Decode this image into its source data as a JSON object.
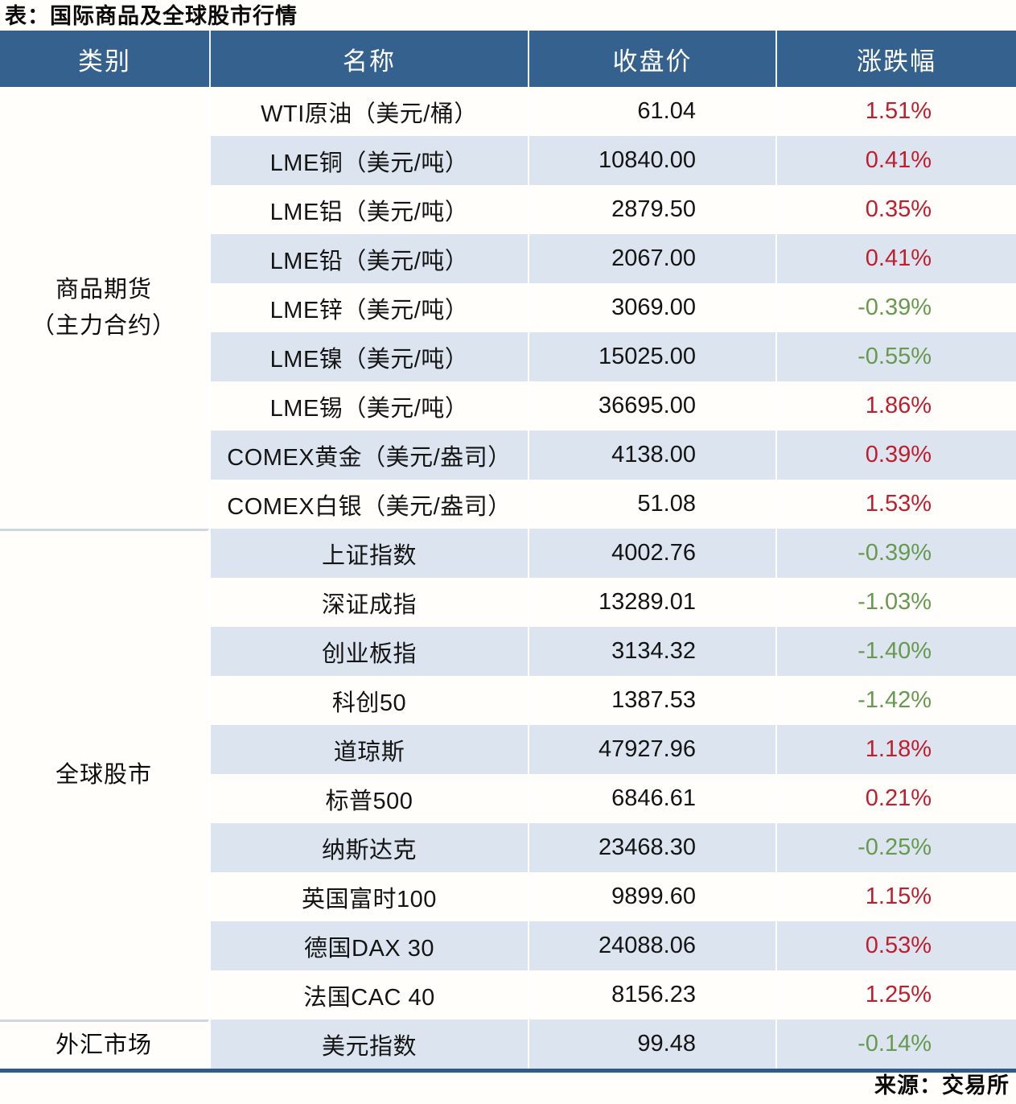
{
  "title": "表：国际商品及全球股市行情",
  "source": "来源：交易所",
  "colors": {
    "header_bg": "#35618E",
    "header_text": "#FFFFFF",
    "stripe_bg": "#DCE5EF",
    "positive_change": "#BF1E2E",
    "negative_change": "#679A50",
    "bottom_border": "#2F5C8A",
    "group_divider": "#CCD7E1"
  },
  "table": {
    "headers": [
      "类别",
      "名称",
      "收盘价",
      "涨跌幅"
    ],
    "groups": [
      {
        "category": "商品期货\n（主力合约）",
        "row_span": 9
      },
      {
        "category": "全球股市",
        "row_span": 10
      },
      {
        "category": "外汇市场",
        "row_span": 1
      }
    ],
    "rows": [
      {
        "name": "WTI原油（美元/桶）",
        "close": "61.04",
        "change": "1.51%",
        "dir": "up"
      },
      {
        "name": "LME铜（美元/吨）",
        "close": "10840.00",
        "change": "0.41%",
        "dir": "up"
      },
      {
        "name": "LME铝（美元/吨）",
        "close": "2879.50",
        "change": "0.35%",
        "dir": "up"
      },
      {
        "name": "LME铅（美元/吨）",
        "close": "2067.00",
        "change": "0.41%",
        "dir": "up"
      },
      {
        "name": "LME锌（美元/吨）",
        "close": "3069.00",
        "change": "-0.39%",
        "dir": "down"
      },
      {
        "name": "LME镍（美元/吨）",
        "close": "15025.00",
        "change": "-0.55%",
        "dir": "down"
      },
      {
        "name": "LME锡（美元/吨）",
        "close": "36695.00",
        "change": "1.86%",
        "dir": "up"
      },
      {
        "name": "COMEX黄金（美元/盎司）",
        "close": "4138.00",
        "change": "0.39%",
        "dir": "up"
      },
      {
        "name": "COMEX白银（美元/盎司）",
        "close": "51.08",
        "change": "1.53%",
        "dir": "up"
      },
      {
        "name": "上证指数",
        "close": "4002.76",
        "change": "-0.39%",
        "dir": "down"
      },
      {
        "name": "深证成指",
        "close": "13289.01",
        "change": "-1.03%",
        "dir": "down"
      },
      {
        "name": "创业板指",
        "close": "3134.32",
        "change": "-1.40%",
        "dir": "down"
      },
      {
        "name": "科创50",
        "close": "1387.53",
        "change": "-1.42%",
        "dir": "down"
      },
      {
        "name": "道琼斯",
        "close": "47927.96",
        "change": "1.18%",
        "dir": "up"
      },
      {
        "name": "标普500",
        "close": "6846.61",
        "change": "0.21%",
        "dir": "up"
      },
      {
        "name": "纳斯达克",
        "close": "23468.30",
        "change": "-0.25%",
        "dir": "down"
      },
      {
        "name": "英国富时100",
        "close": "9899.60",
        "change": "1.15%",
        "dir": "up"
      },
      {
        "name": "德国DAX 30",
        "close": "24088.06",
        "change": "0.53%",
        "dir": "up"
      },
      {
        "name": "法国CAC 40",
        "close": "8156.23",
        "change": "1.25%",
        "dir": "up"
      },
      {
        "name": "美元指数",
        "close": "99.48",
        "change": "-0.14%",
        "dir": "down"
      }
    ]
  },
  "chart_data": {
    "type": "table",
    "title": "表：国际商品及全球股市行情",
    "source": "来源：交易所",
    "columns": [
      "类别",
      "名称",
      "收盘价",
      "涨跌幅"
    ],
    "rows": [
      [
        "商品期货（主力合约）",
        "WTI原油（美元/桶）",
        61.04,
        "1.51%"
      ],
      [
        "商品期货（主力合约）",
        "LME铜（美元/吨）",
        10840.0,
        "0.41%"
      ],
      [
        "商品期货（主力合约）",
        "LME铝（美元/吨）",
        2879.5,
        "0.35%"
      ],
      [
        "商品期货（主力合约）",
        "LME铅（美元/吨）",
        2067.0,
        "0.41%"
      ],
      [
        "商品期货（主力合约）",
        "LME锌（美元/吨）",
        3069.0,
        "-0.39%"
      ],
      [
        "商品期货（主力合约）",
        "LME镍（美元/吨）",
        15025.0,
        "-0.55%"
      ],
      [
        "商品期货（主力合约）",
        "LME锡（美元/吨）",
        36695.0,
        "1.86%"
      ],
      [
        "商品期货（主力合约）",
        "COMEX黄金（美元/盎司）",
        4138.0,
        "0.39%"
      ],
      [
        "商品期货（主力合约）",
        "COMEX白银（美元/盎司）",
        51.08,
        "1.53%"
      ],
      [
        "全球股市",
        "上证指数",
        4002.76,
        "-0.39%"
      ],
      [
        "全球股市",
        "深证成指",
        13289.01,
        "-1.03%"
      ],
      [
        "全球股市",
        "创业板指",
        3134.32,
        "-1.40%"
      ],
      [
        "全球股市",
        "科创50",
        1387.53,
        "-1.42%"
      ],
      [
        "全球股市",
        "道琼斯",
        47927.96,
        "1.18%"
      ],
      [
        "全球股市",
        "标普500",
        6846.61,
        "0.21%"
      ],
      [
        "全球股市",
        "纳斯达克",
        23468.3,
        "-0.25%"
      ],
      [
        "全球股市",
        "英国富时100",
        9899.6,
        "1.15%"
      ],
      [
        "全球股市",
        "德国DAX 30",
        24088.06,
        "0.53%"
      ],
      [
        "全球股市",
        "法国CAC 40",
        8156.23,
        "1.25%"
      ],
      [
        "外汇市场",
        "美元指数",
        99.48,
        "-0.14%"
      ]
    ]
  }
}
